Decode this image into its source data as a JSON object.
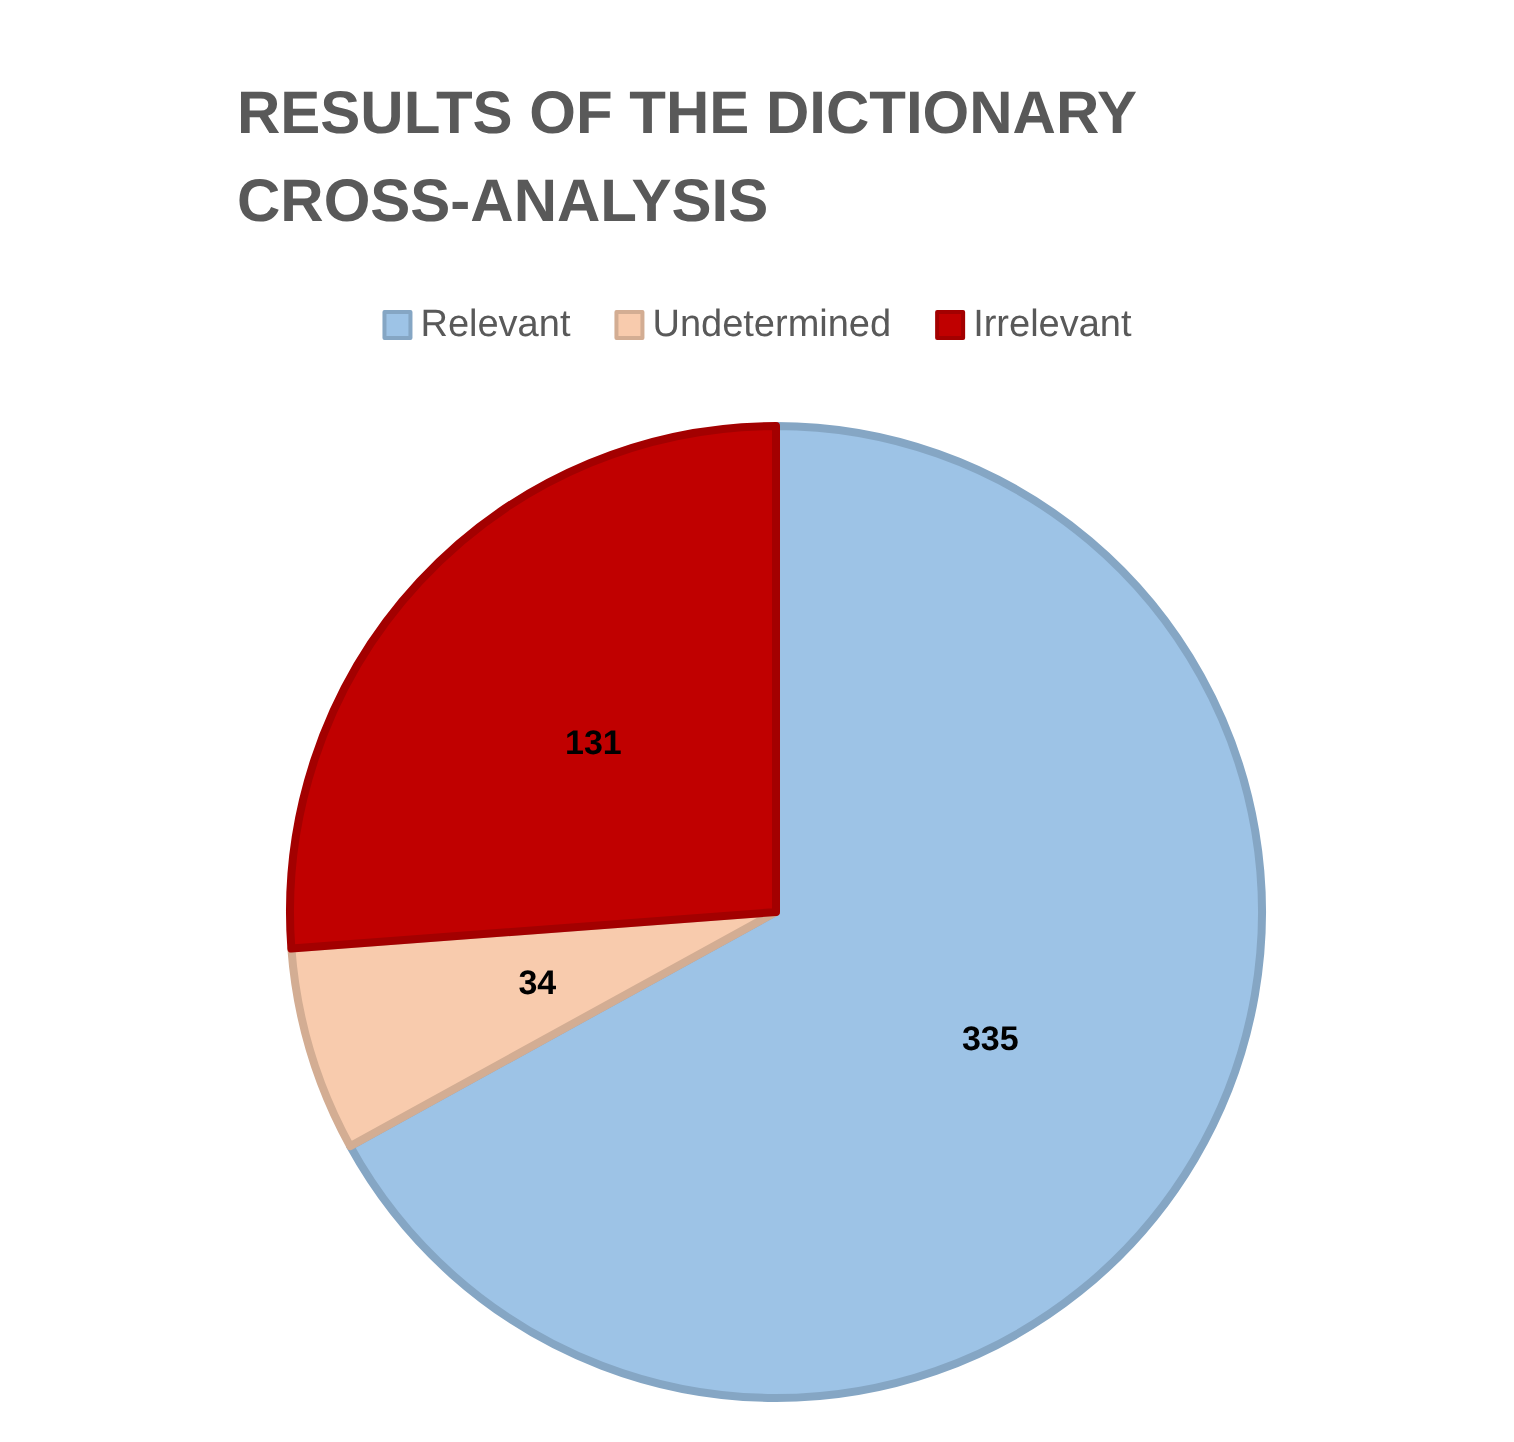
{
  "chart_data": {
    "type": "pie",
    "title": "RESULTS OF THE DICTIONARY CROSS-ANALYSIS",
    "categories": [
      "Relevant",
      "Undetermined",
      "Irrelevant"
    ],
    "values": [
      335,
      34,
      131
    ],
    "colors": [
      "#9dc3e6",
      "#f8cbad",
      "#c00000"
    ],
    "legend": "top",
    "data_labels": true
  }
}
